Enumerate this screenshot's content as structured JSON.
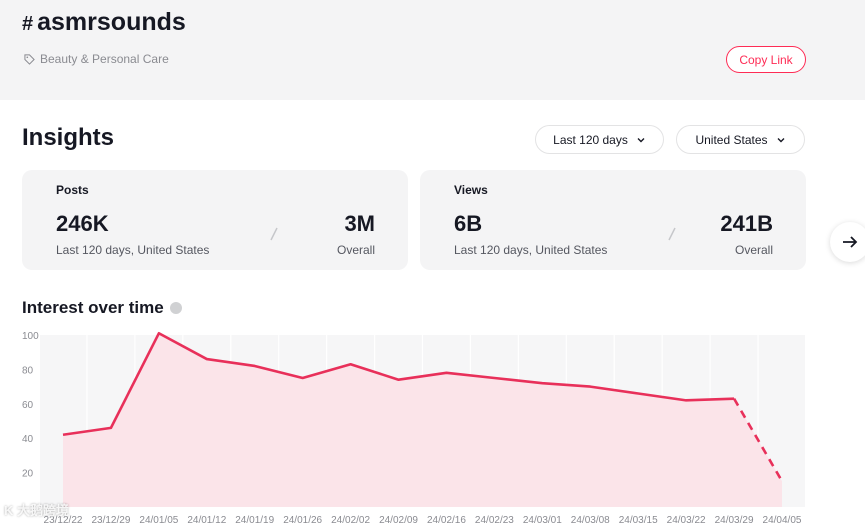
{
  "header": {
    "hash_symbol": "#",
    "hashtag": "asmrsounds",
    "category": "Beauty & Personal Care",
    "copy_link_label": "Copy Link"
  },
  "insights": {
    "title": "Insights",
    "period_filter": "Last 120 days",
    "country_filter": "United States"
  },
  "cards": {
    "posts": {
      "label": "Posts",
      "recent_value": "246K",
      "recent_caption": "Last 120 days, United States",
      "overall_value": "3M",
      "overall_caption": "Overall"
    },
    "views": {
      "label": "Views",
      "recent_value": "6B",
      "recent_caption": "Last 120 days, United States",
      "overall_value": "241B",
      "overall_caption": "Overall"
    }
  },
  "interest": {
    "title": "Interest over time"
  },
  "colors": {
    "accent": "#fe2c55",
    "line": "#e8305a",
    "area": "#fbe3e8",
    "band": "#f6f6f7"
  },
  "watermark": "K 大鹅跨境",
  "chart_data": {
    "type": "line",
    "categories": [
      "23/12/22",
      "23/12/29",
      "24/01/05",
      "24/01/12",
      "24/01/19",
      "24/01/26",
      "24/02/02",
      "24/02/09",
      "24/02/16",
      "24/02/23",
      "24/03/01",
      "24/03/08",
      "24/03/15",
      "24/03/22",
      "24/03/29",
      "24/04/05"
    ],
    "series": [
      {
        "values": [
          42,
          46,
          101,
          86,
          82,
          75,
          83,
          74,
          78,
          75,
          72,
          70,
          66,
          62,
          63,
          15
        ]
      }
    ],
    "dashed_from_index": 14,
    "yticks": [
      100,
      80,
      60,
      40,
      20
    ],
    "ylim": [
      0,
      100
    ],
    "title": "Interest over time",
    "xlabel": "",
    "ylabel": "",
    "grid": true
  }
}
